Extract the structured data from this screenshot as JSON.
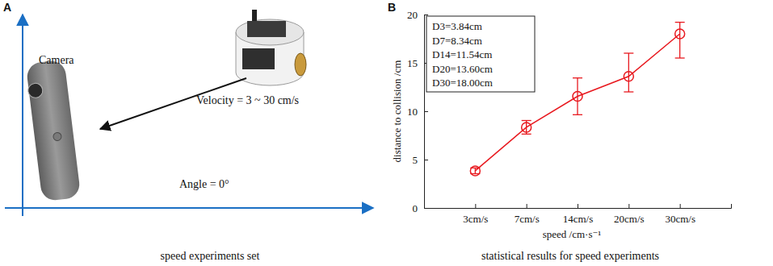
{
  "panel_a": {
    "label": "A",
    "camera": "Camera",
    "velocity": "Velocity = 3 ~ 30 cm/s",
    "angle": "Angle = 0°",
    "caption": "speed experiments set"
  },
  "chart_data": {
    "type": "line",
    "panel_label": "B",
    "caption": "statistical results for speed experiments",
    "x_label": "speed /cm·s⁻¹",
    "y_label": "distance to collision /cm",
    "categories": [
      "3cm/s",
      "7cm/s",
      "14cm/s",
      "20cm/s",
      "30cm/s"
    ],
    "values": [
      3.84,
      8.34,
      11.54,
      13.6,
      18.0
    ],
    "error_minus": [
      0.3,
      0.7,
      1.9,
      1.6,
      2.5
    ],
    "error_plus": [
      0.3,
      0.7,
      1.9,
      2.4,
      1.2
    ],
    "annotations": [
      "D3=3.84cm",
      "D7=8.34cm",
      "D14=11.54cm",
      "D20=13.60cm",
      "D30=18.00cm"
    ],
    "color": "#e8191f",
    "marker": "circle",
    "line_style": "solid",
    "ylim": [
      0,
      20
    ],
    "yticks": [
      0,
      5,
      10,
      15,
      20
    ],
    "grid": false
  }
}
